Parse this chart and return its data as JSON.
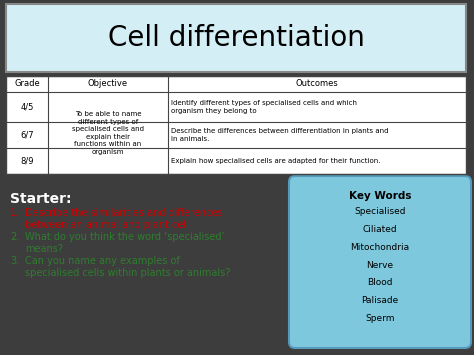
{
  "title": "Cell differentiation",
  "title_bg": "#d4eef5",
  "title_fontsize": 20,
  "bg_color": "#3d3d3d",
  "table_headers": [
    "Grade",
    "Objective",
    "Outcomes"
  ],
  "table_rows_grades": [
    "4/5",
    "6/7",
    "8/9"
  ],
  "table_obj": "To be able to name\ndifferent types of\nspecialised cells and\nexplain their\nfunctions within an\norganism",
  "table_outcomes": [
    "Identify different types of specialised cells and which\norganism they belong to",
    "Describe the differences between differentiation in plants and\nin animals.",
    "Explain how specialised cells are adapted for their function."
  ],
  "starter_label": "Starter:",
  "questions": [
    {
      "num": "1.",
      "text": "Describe the similarities and differences\nbetween an animal and plant cell",
      "color": "#cc0000"
    },
    {
      "num": "2.",
      "text": "What do you think the word ‘specialised’\nmeans?",
      "color": "#2e7d2e"
    },
    {
      "num": "3.",
      "text": "Can you name any examples of\nspecialised cells within plants or animals?",
      "color": "#2e7d2e"
    }
  ],
  "key_words_title": "Key Words",
  "key_words": [
    "Specialised",
    "Ciliated",
    "Mitochondria",
    "Nerve",
    "Blood",
    "Palisade",
    "Sperm"
  ],
  "key_words_bg": "#7ec8dd",
  "key_words_border": "#5599bb"
}
